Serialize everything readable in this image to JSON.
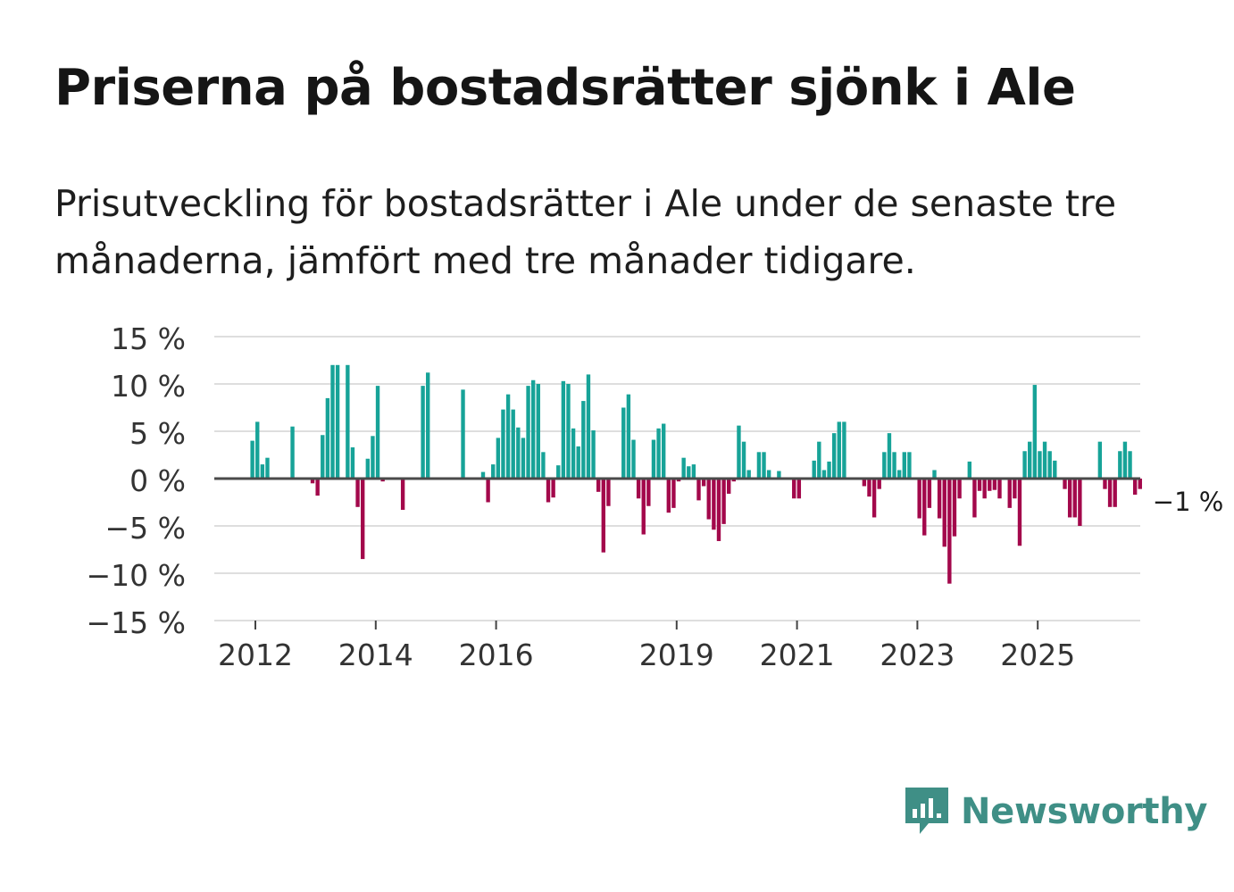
{
  "title": "Priserna på bostadsrätter sjönk i Ale",
  "subtitle": "Prisutveckling för bostadsrätter i Ale under de senaste tre månaderna, jämfört med tre månader tidigare.",
  "brand": {
    "name": "Newsworthy",
    "icon": "newsworthy-chart-bubble-icon",
    "color": "#3f8f86"
  },
  "chart_data": {
    "type": "bar",
    "title": "Priserna på bostadsrätter sjönk i Ale",
    "xlabel": "",
    "ylabel": "",
    "ylim": [
      -15,
      15
    ],
    "yticks": [
      15,
      10,
      5,
      0,
      -5,
      -10,
      -15
    ],
    "ytick_labels": [
      "15 %",
      "10 %",
      "5 %",
      "0 %",
      "−5 %",
      "−10 %",
      "−15 %"
    ],
    "xticks": [
      2012,
      2014,
      2016,
      2019,
      2021,
      2023,
      2025
    ],
    "xtick_labels": [
      "2012",
      "2014",
      "2016",
      "2019",
      "2021",
      "2023",
      "2025"
    ],
    "x_start": 2011.2,
    "x_step_months": 1,
    "positive_color": "#17a398",
    "negative_color": "#a3084b",
    "grid": true,
    "last_value_label": "−1 %",
    "series": [
      {
        "name": "Prisutveckling",
        "values": [
          null,
          null,
          null,
          null,
          null,
          null,
          null,
          null,
          null,
          4,
          6,
          1.5,
          2.2,
          null,
          null,
          null,
          null,
          5.5,
          null,
          null,
          null,
          -0.5,
          -1.8,
          4.6,
          8.5,
          12,
          12,
          null,
          12,
          3.3,
          -3,
          -8.5,
          2.1,
          4.5,
          9.8,
          -0.3,
          null,
          null,
          null,
          -3.3,
          null,
          null,
          null,
          9.8,
          11.2,
          null,
          null,
          null,
          null,
          null,
          null,
          9.4,
          null,
          null,
          null,
          0.7,
          -2.5,
          1.5,
          4.3,
          7.3,
          8.9,
          7.3,
          5.4,
          4.3,
          9.8,
          10.4,
          10,
          2.8,
          -2.5,
          -2,
          1.4,
          10.3,
          10,
          5.3,
          3.4,
          8.2,
          11,
          5.1,
          -1.4,
          -7.8,
          -2.9,
          null,
          null,
          7.5,
          8.9,
          4.1,
          -2.1,
          -5.9,
          -2.9,
          4.1,
          5.3,
          5.8,
          -3.6,
          -3.1,
          -0.3,
          2.2,
          1.3,
          1.5,
          -2.3,
          -0.8,
          -4.3,
          -5.4,
          -6.6,
          -4.8,
          -1.6,
          -0.3,
          5.6,
          3.9,
          0.9,
          null,
          2.8,
          2.8,
          0.9,
          null,
          0.8,
          null,
          null,
          -2.1,
          -2.1,
          null,
          null,
          1.9,
          3.9,
          0.9,
          1.8,
          4.8,
          6,
          6,
          null,
          null,
          null,
          -0.8,
          -1.9,
          -4.1,
          -1.1,
          2.8,
          4.8,
          2.8,
          0.9,
          2.8,
          2.8,
          null,
          -4.2,
          -6,
          -3.1,
          0.9,
          -4.2,
          -7.2,
          -11.1,
          -6.1,
          -2.1,
          null,
          1.8,
          -4.1,
          -1.3,
          -2.1,
          -1.3,
          -1.2,
          -2.1,
          null,
          -3.1,
          -2.1,
          -7.1,
          2.9,
          3.9,
          9.9,
          2.9,
          3.9,
          2.9,
          1.9,
          null,
          -1.1,
          -4.1,
          -4.1,
          -5,
          null,
          null,
          null,
          3.9,
          -1.1,
          -3,
          -3,
          2.9,
          3.9,
          2.9,
          -1.7,
          -1.1
        ]
      }
    ]
  }
}
